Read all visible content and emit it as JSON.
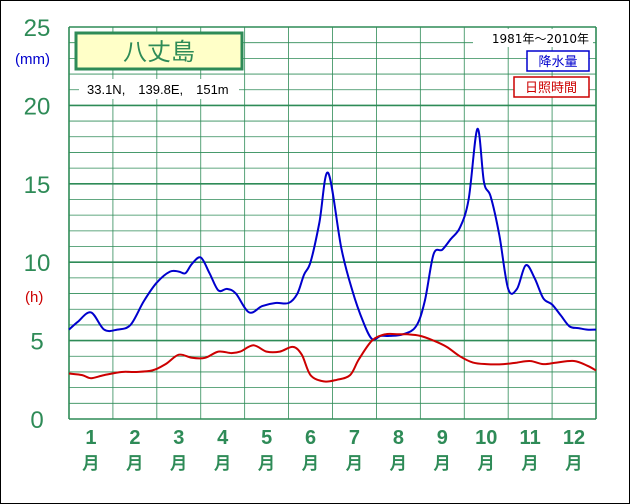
{
  "colors": {
    "grid": "#2e8b57",
    "precip": "#0000cd",
    "sunshine": "#cc0000",
    "title_box_fill": "#ffffc8"
  },
  "header": {
    "station": "八丈島",
    "coordinates": "33.1N,　139.8E,　151m",
    "period": "1981年〜2010年",
    "unit_precip": "(mm)",
    "unit_sunshine": "(h)"
  },
  "legend": {
    "precip": "降水量",
    "sunshine": "日照時間"
  },
  "axis": {
    "y_ticks": [
      "0",
      "5",
      "10",
      "15",
      "20",
      "25"
    ],
    "x_months": [
      "1",
      "2",
      "3",
      "4",
      "5",
      "6",
      "7",
      "8",
      "9",
      "10",
      "11",
      "12"
    ],
    "x_unit": "月"
  },
  "chart_data": {
    "type": "line",
    "title": "八丈島",
    "xlabel": "月",
    "ylabel": "(mm)",
    "ylim": [
      0,
      25
    ],
    "xlim": [
      0.5,
      12.5
    ],
    "grid": true,
    "legend_position": "top-right",
    "categories": [
      "1",
      "2",
      "3",
      "4",
      "5",
      "6",
      "7",
      "8",
      "9",
      "10",
      "11",
      "12"
    ],
    "series": [
      {
        "name": "降水量",
        "color": "#0000cd",
        "x": [
          0.5,
          0.7,
          1.0,
          1.3,
          1.6,
          1.9,
          2.2,
          2.5,
          2.8,
          3.0,
          3.15,
          3.3,
          3.5,
          3.7,
          3.9,
          4.1,
          4.3,
          4.6,
          4.9,
          5.2,
          5.5,
          5.7,
          5.85,
          6.0,
          6.2,
          6.4,
          6.7,
          6.95,
          7.2,
          7.4,
          7.6,
          7.8,
          8.1,
          8.4,
          8.6,
          8.8,
          9.0,
          9.2,
          9.4,
          9.6,
          9.8,
          9.95,
          10.1,
          10.3,
          10.5,
          10.7,
          10.9,
          11.1,
          11.3,
          11.5,
          11.7,
          11.9,
          12.1,
          12.3,
          12.5
        ],
        "y": [
          5.7,
          6.2,
          6.8,
          5.7,
          5.7,
          6.0,
          7.5,
          8.7,
          9.4,
          9.4,
          9.3,
          9.9,
          10.3,
          9.3,
          8.2,
          8.3,
          8.0,
          6.8,
          7.2,
          7.4,
          7.4,
          8.0,
          9.2,
          10.0,
          12.5,
          15.7,
          10.9,
          8.2,
          6.2,
          5.1,
          5.3,
          5.3,
          5.4,
          5.9,
          7.5,
          10.5,
          10.8,
          11.5,
          12.2,
          14.0,
          18.5,
          15.1,
          14.2,
          11.7,
          8.3,
          8.3,
          9.8,
          9.0,
          7.7,
          7.3,
          6.6,
          5.9,
          5.8,
          5.7,
          5.7
        ]
      },
      {
        "name": "日照時間",
        "color": "#cc0000",
        "x": [
          0.5,
          0.8,
          1.0,
          1.3,
          1.7,
          2.0,
          2.4,
          2.7,
          3.0,
          3.3,
          3.6,
          3.9,
          4.2,
          4.4,
          4.7,
          5.0,
          5.3,
          5.6,
          5.8,
          6.0,
          6.3,
          6.6,
          6.9,
          7.1,
          7.4,
          7.7,
          8.0,
          8.2,
          8.5,
          8.8,
          9.1,
          9.4,
          9.7,
          10.0,
          10.4,
          10.7,
          11.0,
          11.3,
          11.6,
          12.0,
          12.3,
          12.5
        ],
        "y": [
          2.9,
          2.8,
          2.6,
          2.8,
          3.0,
          3.0,
          3.1,
          3.5,
          4.1,
          3.9,
          3.9,
          4.3,
          4.2,
          4.3,
          4.7,
          4.3,
          4.3,
          4.6,
          4.1,
          2.8,
          2.4,
          2.5,
          2.8,
          3.8,
          5.0,
          5.4,
          5.4,
          5.4,
          5.3,
          5.0,
          4.6,
          4.0,
          3.6,
          3.5,
          3.5,
          3.6,
          3.7,
          3.5,
          3.6,
          3.7,
          3.4,
          3.1
        ]
      }
    ]
  }
}
